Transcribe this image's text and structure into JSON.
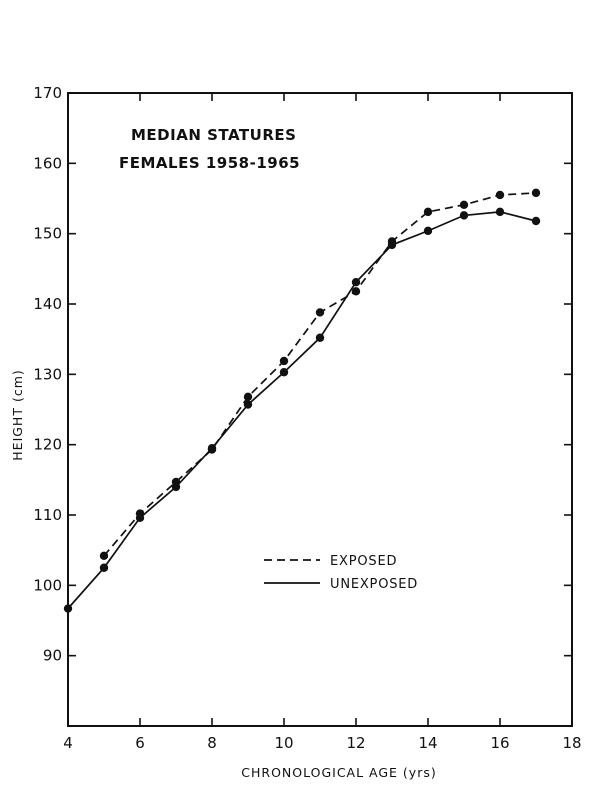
{
  "chart_data": {
    "type": "line",
    "title": [
      "MEDIAN STATURES",
      "FEMALES 1958-1965"
    ],
    "xlabel": "CHRONOLOGICAL AGE (yrs)",
    "ylabel": "HEIGHT (cm)",
    "xlim": [
      4,
      18
    ],
    "ylim": [
      80,
      170
    ],
    "xticks": [
      4,
      6,
      8,
      10,
      12,
      14,
      16,
      18
    ],
    "yticks": [
      90,
      100,
      110,
      120,
      130,
      140,
      150,
      160,
      170
    ],
    "grid": false,
    "legend_position": "center-right",
    "colors": {
      "ink": "#111111",
      "background": "#ffffff"
    },
    "series": [
      {
        "name": "EXPOSED",
        "line_style": "dashed",
        "x": [
          5,
          6,
          7,
          8,
          9,
          10,
          11,
          12,
          13,
          14,
          15,
          16,
          17
        ],
        "values": [
          104.2,
          110.2,
          114.7,
          119.3,
          126.8,
          131.9,
          138.8,
          141.8,
          148.9,
          153.1,
          154.1,
          155.5,
          155.8
        ]
      },
      {
        "name": "UNEXPOSED",
        "line_style": "solid",
        "x": [
          4,
          5,
          6,
          7,
          8,
          9,
          10,
          11,
          12,
          13,
          14,
          15,
          16,
          17
        ],
        "values": [
          96.7,
          102.5,
          109.6,
          114.0,
          119.5,
          125.7,
          130.3,
          135.2,
          143.1,
          148.4,
          150.4,
          152.6,
          153.1,
          151.8
        ]
      }
    ]
  }
}
